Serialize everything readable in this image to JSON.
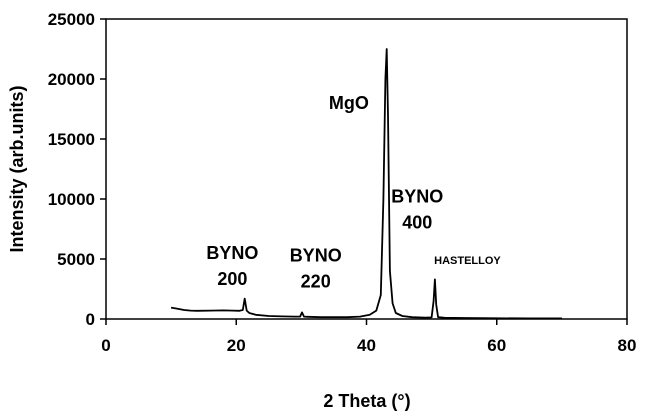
{
  "chart_data": {
    "type": "line",
    "title": "",
    "xlabel": "2 Theta (°)",
    "ylabel": "Intensity (arb.units)",
    "xlim": [
      0,
      80
    ],
    "ylim": [
      0,
      25000
    ],
    "xticks": [
      "0",
      "20",
      "40",
      "60",
      "80"
    ],
    "yticks": [
      "0",
      "5000",
      "10000",
      "15000",
      "20000",
      "25000"
    ],
    "grid": false,
    "legend": "none",
    "line_color": "#000000",
    "series": [
      {
        "x": [
          10,
          11,
          12,
          13,
          14,
          16,
          18,
          19.5,
          20.5,
          21,
          21.3,
          21.6,
          22,
          23,
          25,
          27,
          29,
          29.8,
          30.1,
          30.4,
          31,
          33,
          35,
          37,
          39,
          40.5,
          41.5,
          42.2,
          42.6,
          42.9,
          43.1,
          43.3,
          43.6,
          44,
          44.5,
          45.5,
          47,
          49,
          50,
          50.3,
          50.5,
          50.7,
          51,
          52,
          55,
          60,
          65,
          70
        ],
        "y": [
          950,
          850,
          750,
          700,
          680,
          700,
          720,
          700,
          680,
          750,
          1700,
          700,
          500,
          350,
          250,
          220,
          200,
          200,
          550,
          200,
          180,
          150,
          150,
          150,
          200,
          350,
          700,
          2000,
          10000,
          20000,
          22500,
          17000,
          4000,
          1300,
          500,
          250,
          150,
          120,
          130,
          1500,
          3300,
          1200,
          150,
          100,
          80,
          60,
          50,
          50
        ]
      }
    ],
    "annotations": [
      {
        "id": "mgo",
        "lines": [
          "MgO"
        ],
        "x": 37.3,
        "y": 17500
      },
      {
        "id": "byno400",
        "lines": [
          "BYNO",
          "400"
        ],
        "x": 47.8,
        "y": 9700
      },
      {
        "id": "byno200",
        "lines": [
          "BYNO",
          "200"
        ],
        "x": 19.4,
        "y": 5000
      },
      {
        "id": "byno220",
        "lines": [
          "BYNO",
          "220"
        ],
        "x": 32.2,
        "y": 4800
      },
      {
        "id": "hastelloy",
        "lines": [
          "HASTELLOY"
        ],
        "x": 55.5,
        "y": 4600,
        "small": true
      }
    ]
  }
}
